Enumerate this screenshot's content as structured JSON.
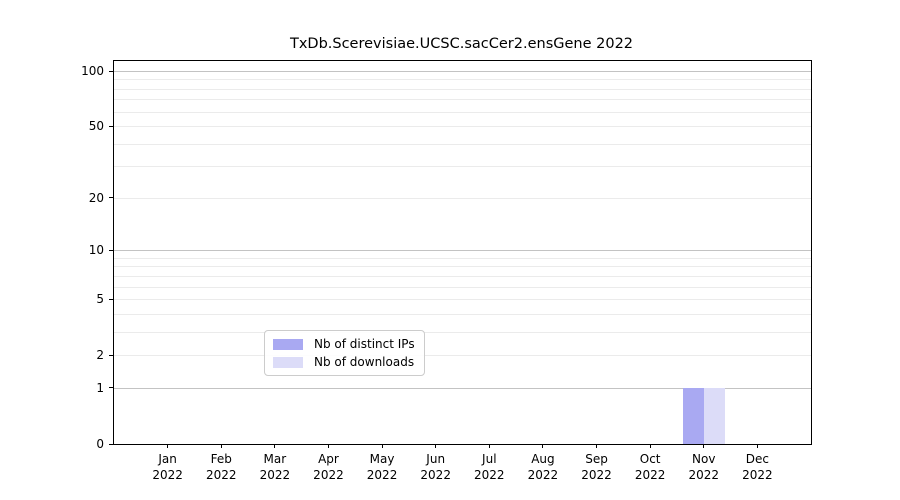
{
  "title": "TxDb.Scerevisiae.UCSC.sacCer2.ensGene 2022",
  "chart_data": {
    "type": "bar",
    "title": "TxDb.Scerevisiae.UCSC.sacCer2.ensGene 2022",
    "categories": [
      "Jan",
      "Feb",
      "Mar",
      "Apr",
      "May",
      "Jun",
      "Jul",
      "Aug",
      "Sep",
      "Oct",
      "Nov",
      "Dec"
    ],
    "year": "2022",
    "series": [
      {
        "name": "Nb of distinct IPs",
        "color": "#a9a9f2",
        "values": [
          0,
          0,
          0,
          0,
          0,
          0,
          0,
          0,
          0,
          0,
          1,
          0
        ]
      },
      {
        "name": "Nb of downloads",
        "color": "#dcdcf8",
        "values": [
          0,
          0,
          0,
          0,
          0,
          0,
          0,
          0,
          0,
          0,
          1,
          0
        ]
      }
    ],
    "xlabel": "",
    "ylabel": "",
    "y_axis": {
      "scale": "log10(1+value)",
      "ylim": [
        0,
        100
      ],
      "tick_values": [
        0,
        1,
        2,
        5,
        10,
        20,
        50,
        100
      ],
      "major_gridlines": [
        1,
        10,
        100
      ],
      "minor_gridlines": [
        2,
        3,
        4,
        5,
        6,
        7,
        8,
        9,
        20,
        30,
        40,
        50,
        60,
        70,
        80,
        90
      ]
    },
    "legend": {
      "position": "lower center",
      "entries": [
        "Nb of distinct IPs",
        "Nb of downloads"
      ]
    }
  },
  "colors": {
    "background": "#ffffff",
    "axis": "#000000",
    "grid_major": "#c3c3c3",
    "grid_minor": "#ebebeb",
    "bar_distinct_ips": "#a9a9f2",
    "bar_downloads": "#dcdcf8",
    "legend_border": "#cccccc"
  }
}
